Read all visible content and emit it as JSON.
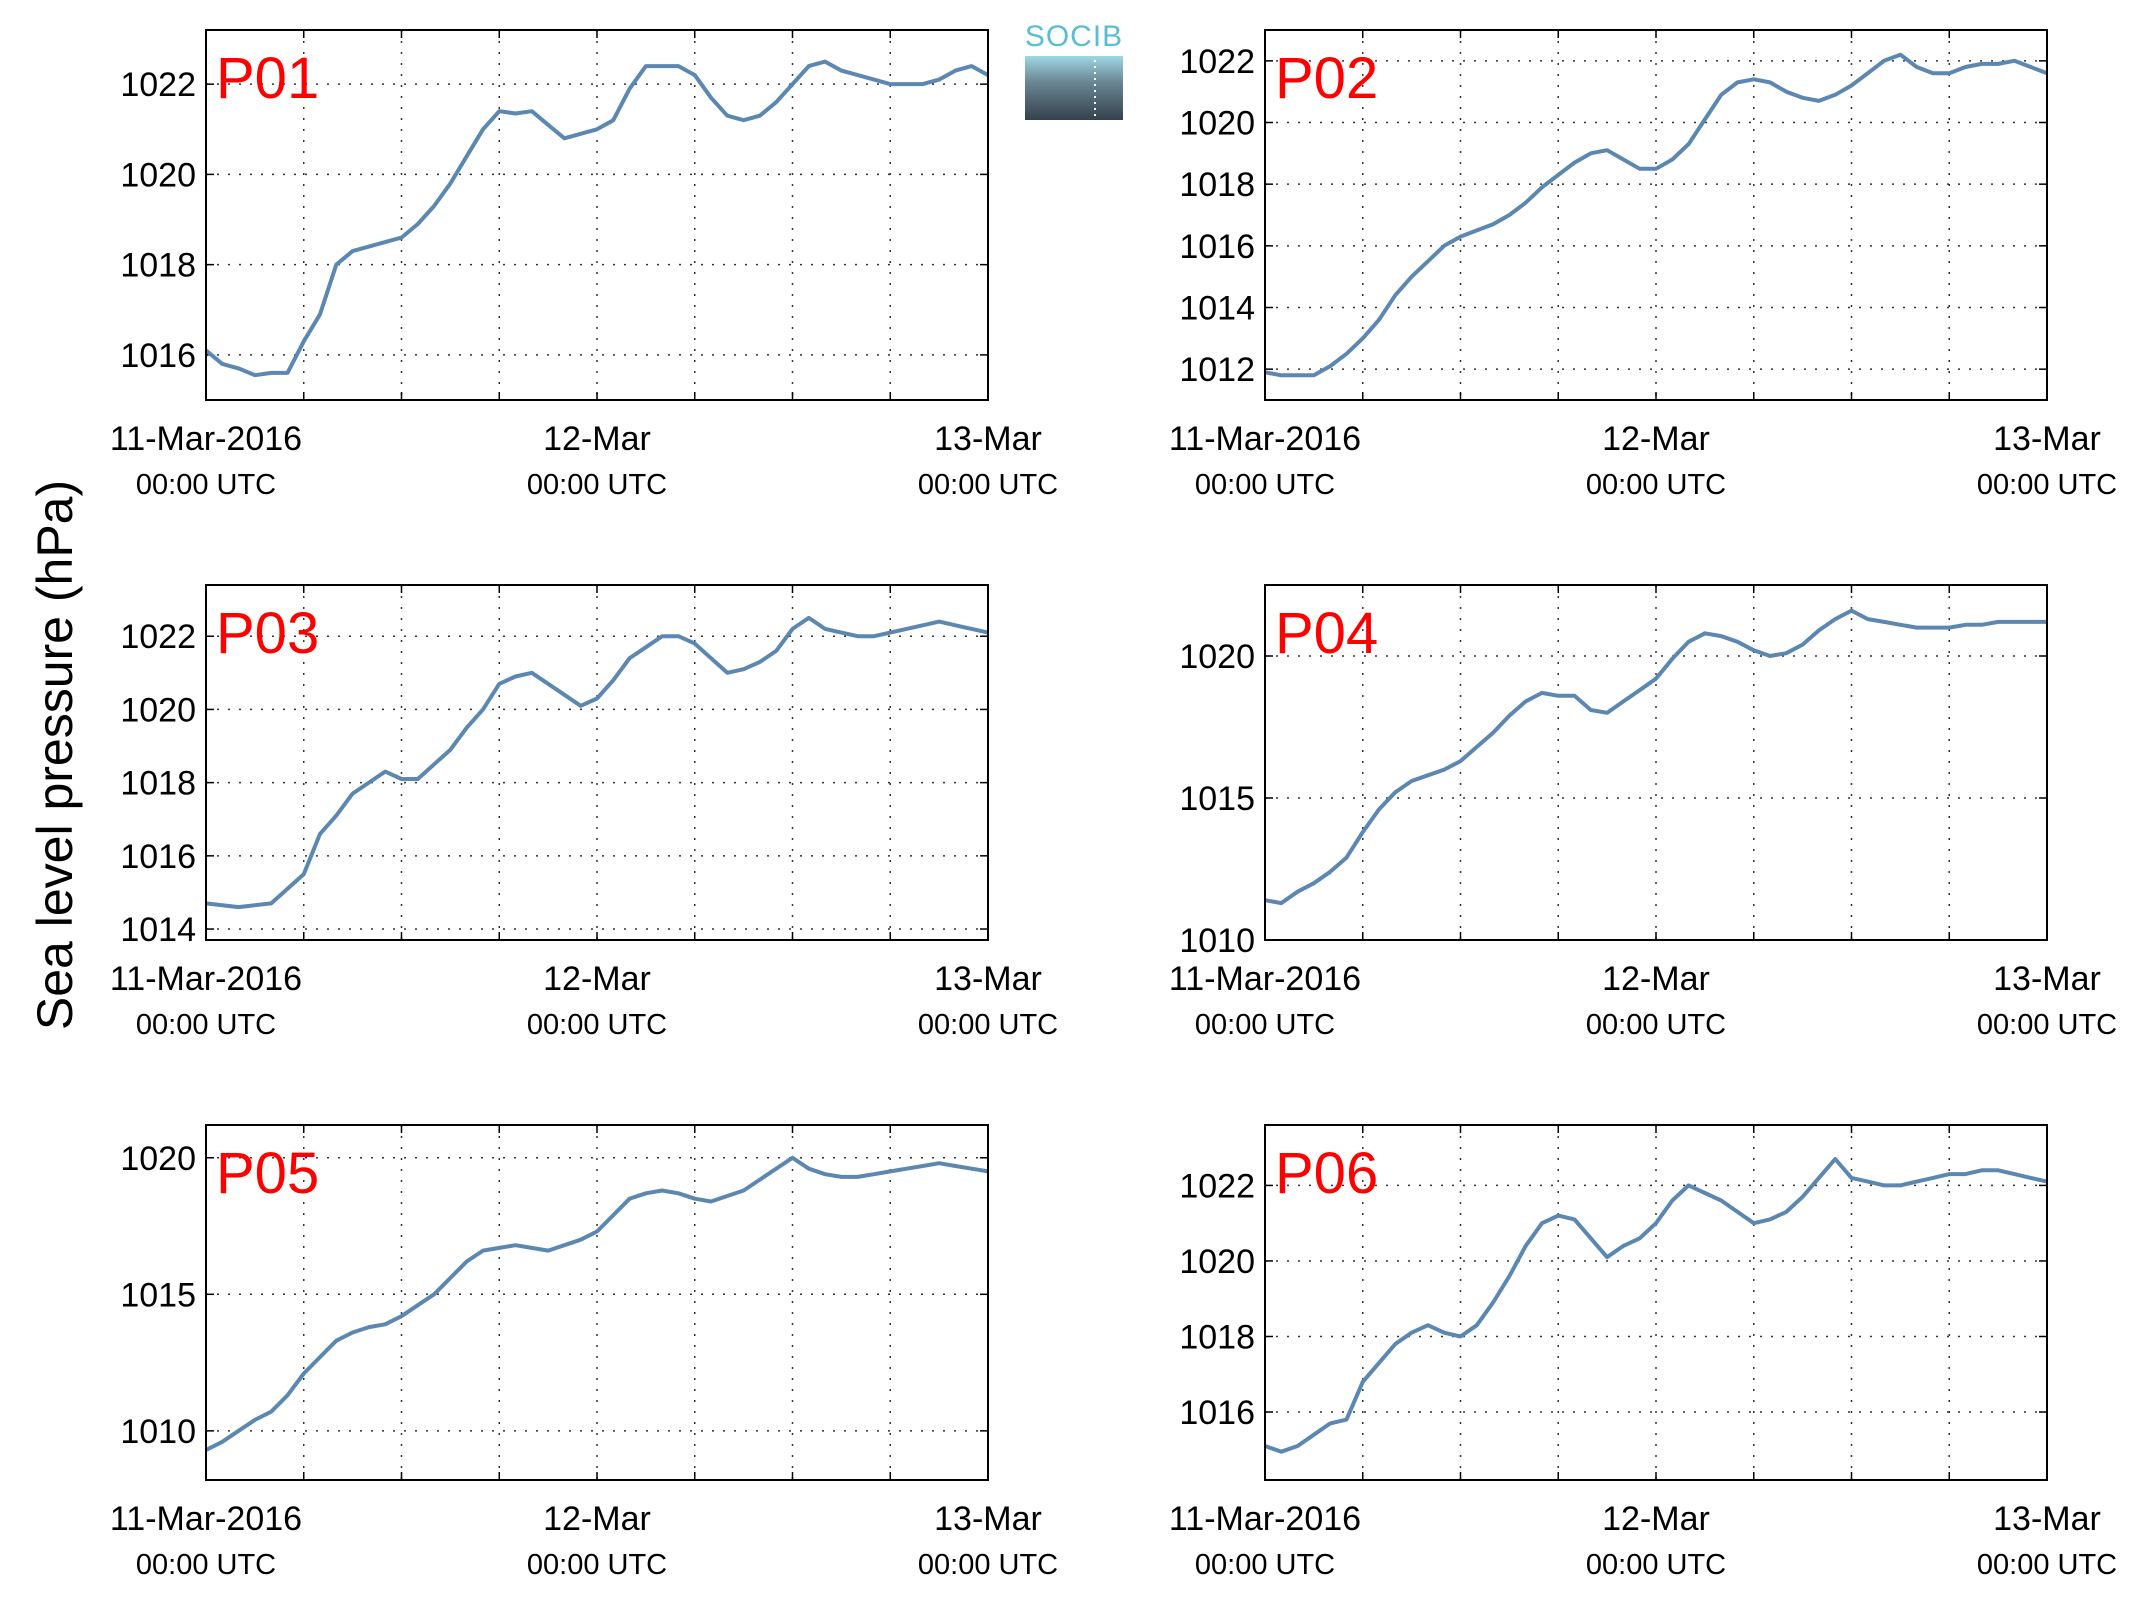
{
  "figure": {
    "ylabel": "Sea level pressure (hPa)",
    "logo_text": "SOCIB",
    "line_color": "#5b87b1",
    "label_color": "#ff0000"
  },
  "chart_data": [
    {
      "type": "line",
      "name": "P01",
      "grid": true,
      "xlabels": [
        {
          "main": "11-Mar-2016",
          "sub": "00:00 UTC"
        },
        {
          "main": "12-Mar",
          "sub": "00:00 UTC"
        },
        {
          "main": "13-Mar",
          "sub": "00:00 UTC"
        }
      ],
      "xlim": [
        0,
        48
      ],
      "ylim": [
        1015,
        1023.2
      ],
      "yticks": [
        1016,
        1018,
        1020,
        1022
      ],
      "x": [
        0,
        1,
        2,
        3,
        4,
        5,
        6,
        7,
        8,
        9,
        10,
        11,
        12,
        13,
        14,
        15,
        16,
        17,
        18,
        19,
        20,
        21,
        22,
        23,
        24,
        25,
        26,
        27,
        28,
        29,
        30,
        31,
        32,
        33,
        34,
        35,
        36,
        37,
        38,
        39,
        40,
        41,
        42,
        43,
        44,
        45,
        46,
        47,
        48
      ],
      "values": [
        1016.1,
        1015.8,
        1015.7,
        1015.55,
        1015.6,
        1015.6,
        1016.3,
        1016.9,
        1018.0,
        1018.3,
        1018.4,
        1018.5,
        1018.6,
        1018.9,
        1019.3,
        1019.8,
        1020.4,
        1021.0,
        1021.4,
        1021.35,
        1021.4,
        1021.1,
        1020.8,
        1020.9,
        1021.0,
        1021.2,
        1021.9,
        1022.4,
        1022.4,
        1022.4,
        1022.2,
        1021.7,
        1021.3,
        1021.2,
        1021.3,
        1021.6,
        1022.0,
        1022.4,
        1022.5,
        1022.3,
        1022.2,
        1022.1,
        1022.0,
        1022.0,
        1022.0,
        1022.1,
        1022.3,
        1022.4,
        1022.2
      ]
    },
    {
      "type": "line",
      "name": "P02",
      "grid": true,
      "xlabels": [
        {
          "main": "11-Mar-2016",
          "sub": "00:00 UTC"
        },
        {
          "main": "12-Mar",
          "sub": "00:00 UTC"
        },
        {
          "main": "13-Mar",
          "sub": "00:00 UTC"
        }
      ],
      "xlim": [
        0,
        48
      ],
      "ylim": [
        1011,
        1023
      ],
      "yticks": [
        1012,
        1014,
        1016,
        1018,
        1020,
        1022
      ],
      "x": [
        0,
        1,
        2,
        3,
        4,
        5,
        6,
        7,
        8,
        9,
        10,
        11,
        12,
        13,
        14,
        15,
        16,
        17,
        18,
        19,
        20,
        21,
        22,
        23,
        24,
        25,
        26,
        27,
        28,
        29,
        30,
        31,
        32,
        33,
        34,
        35,
        36,
        37,
        38,
        39,
        40,
        41,
        42,
        43,
        44,
        45,
        46,
        47,
        48
      ],
      "values": [
        1011.9,
        1011.8,
        1011.8,
        1011.8,
        1012.1,
        1012.5,
        1013.0,
        1013.6,
        1014.4,
        1015.0,
        1015.5,
        1016.0,
        1016.3,
        1016.5,
        1016.7,
        1017.0,
        1017.4,
        1017.9,
        1018.3,
        1018.7,
        1019.0,
        1019.1,
        1018.8,
        1018.5,
        1018.5,
        1018.8,
        1019.3,
        1020.1,
        1020.9,
        1021.3,
        1021.4,
        1021.3,
        1021.0,
        1020.8,
        1020.7,
        1020.9,
        1021.2,
        1021.6,
        1022.0,
        1022.2,
        1021.8,
        1021.6,
        1021.6,
        1021.8,
        1021.9,
        1021.9,
        1022.0,
        1021.8,
        1021.6
      ]
    },
    {
      "type": "line",
      "name": "P03",
      "grid": true,
      "xlabels": [
        {
          "main": "11-Mar-2016",
          "sub": "00:00 UTC"
        },
        {
          "main": "12-Mar",
          "sub": "00:00 UTC"
        },
        {
          "main": "13-Mar",
          "sub": "00:00 UTC"
        }
      ],
      "xlim": [
        0,
        48
      ],
      "ylim": [
        1013.7,
        1023.4
      ],
      "yticks": [
        1014,
        1016,
        1018,
        1020,
        1022
      ],
      "x": [
        0,
        1,
        2,
        3,
        4,
        5,
        6,
        7,
        8,
        9,
        10,
        11,
        12,
        13,
        14,
        15,
        16,
        17,
        18,
        19,
        20,
        21,
        22,
        23,
        24,
        25,
        26,
        27,
        28,
        29,
        30,
        31,
        32,
        33,
        34,
        35,
        36,
        37,
        38,
        39,
        40,
        41,
        42,
        43,
        44,
        45,
        46,
        47,
        48
      ],
      "values": [
        1014.7,
        1014.65,
        1014.6,
        1014.65,
        1014.7,
        1015.1,
        1015.5,
        1016.6,
        1017.1,
        1017.7,
        1018.0,
        1018.3,
        1018.1,
        1018.1,
        1018.5,
        1018.9,
        1019.5,
        1020.0,
        1020.7,
        1020.9,
        1021.0,
        1020.7,
        1020.4,
        1020.1,
        1020.3,
        1020.8,
        1021.4,
        1021.7,
        1022.0,
        1022.0,
        1021.8,
        1021.4,
        1021.0,
        1021.1,
        1021.3,
        1021.6,
        1022.2,
        1022.5,
        1022.2,
        1022.1,
        1022.0,
        1022.0,
        1022.1,
        1022.2,
        1022.3,
        1022.4,
        1022.3,
        1022.2,
        1022.1
      ]
    },
    {
      "type": "line",
      "name": "P04",
      "grid": true,
      "xlabels": [
        {
          "main": "11-Mar-2016",
          "sub": "00:00 UTC"
        },
        {
          "main": "12-Mar",
          "sub": "00:00 UTC"
        },
        {
          "main": "13-Mar",
          "sub": "00:00 UTC"
        }
      ],
      "xlim": [
        0,
        48
      ],
      "ylim": [
        1010,
        1022.5
      ],
      "yticks": [
        1010,
        1015,
        1020
      ],
      "x": [
        0,
        1,
        2,
        3,
        4,
        5,
        6,
        7,
        8,
        9,
        10,
        11,
        12,
        13,
        14,
        15,
        16,
        17,
        18,
        19,
        20,
        21,
        22,
        23,
        24,
        25,
        26,
        27,
        28,
        29,
        30,
        31,
        32,
        33,
        34,
        35,
        36,
        37,
        38,
        39,
        40,
        41,
        42,
        43,
        44,
        45,
        46,
        47,
        48
      ],
      "values": [
        1011.4,
        1011.3,
        1011.7,
        1012.0,
        1012.4,
        1012.9,
        1013.8,
        1014.6,
        1015.2,
        1015.6,
        1015.8,
        1016.0,
        1016.3,
        1016.8,
        1017.3,
        1017.9,
        1018.4,
        1018.7,
        1018.6,
        1018.6,
        1018.1,
        1018.0,
        1018.4,
        1018.8,
        1019.2,
        1019.9,
        1020.5,
        1020.8,
        1020.7,
        1020.5,
        1020.2,
        1020.0,
        1020.1,
        1020.4,
        1020.9,
        1021.3,
        1021.6,
        1021.3,
        1021.2,
        1021.1,
        1021.0,
        1021.0,
        1021.0,
        1021.1,
        1021.1,
        1021.2,
        1021.2,
        1021.2,
        1021.2
      ]
    },
    {
      "type": "line",
      "name": "P05",
      "grid": true,
      "xlabels": [
        {
          "main": "11-Mar-2016",
          "sub": "00:00 UTC"
        },
        {
          "main": "12-Mar",
          "sub": "00:00 UTC"
        },
        {
          "main": "13-Mar",
          "sub": "00:00 UTC"
        }
      ],
      "xlim": [
        0,
        48
      ],
      "ylim": [
        1008.2,
        1021.2
      ],
      "yticks": [
        1010,
        1015,
        1020
      ],
      "x": [
        0,
        1,
        2,
        3,
        4,
        5,
        6,
        7,
        8,
        9,
        10,
        11,
        12,
        13,
        14,
        15,
        16,
        17,
        18,
        19,
        20,
        21,
        22,
        23,
        24,
        25,
        26,
        27,
        28,
        29,
        30,
        31,
        32,
        33,
        34,
        35,
        36,
        37,
        38,
        39,
        40,
        41,
        42,
        43,
        44,
        45,
        46,
        47,
        48
      ],
      "values": [
        1009.3,
        1009.6,
        1010.0,
        1010.4,
        1010.7,
        1011.3,
        1012.1,
        1012.7,
        1013.3,
        1013.6,
        1013.8,
        1013.9,
        1014.2,
        1014.6,
        1015.0,
        1015.6,
        1016.2,
        1016.6,
        1016.7,
        1016.8,
        1016.7,
        1016.6,
        1016.8,
        1017.0,
        1017.3,
        1017.9,
        1018.5,
        1018.7,
        1018.8,
        1018.7,
        1018.5,
        1018.4,
        1018.6,
        1018.8,
        1019.2,
        1019.6,
        1020.0,
        1019.6,
        1019.4,
        1019.3,
        1019.3,
        1019.4,
        1019.5,
        1019.6,
        1019.7,
        1019.8,
        1019.7,
        1019.6,
        1019.5
      ]
    },
    {
      "type": "line",
      "name": "P06",
      "grid": true,
      "xlabels": [
        {
          "main": "11-Mar-2016",
          "sub": "00:00 UTC"
        },
        {
          "main": "12-Mar",
          "sub": "00:00 UTC"
        },
        {
          "main": "13-Mar",
          "sub": "00:00 UTC"
        }
      ],
      "xlim": [
        0,
        48
      ],
      "ylim": [
        1014.2,
        1023.6
      ],
      "yticks": [
        1016,
        1018,
        1020,
        1022
      ],
      "x": [
        0,
        1,
        2,
        3,
        4,
        5,
        6,
        7,
        8,
        9,
        10,
        11,
        12,
        13,
        14,
        15,
        16,
        17,
        18,
        19,
        20,
        21,
        22,
        23,
        24,
        25,
        26,
        27,
        28,
        29,
        30,
        31,
        32,
        33,
        34,
        35,
        36,
        37,
        38,
        39,
        40,
        41,
        42,
        43,
        44,
        45,
        46,
        47,
        48
      ],
      "values": [
        1015.1,
        1014.95,
        1015.1,
        1015.4,
        1015.7,
        1015.8,
        1016.8,
        1017.3,
        1017.8,
        1018.1,
        1018.3,
        1018.1,
        1018.0,
        1018.3,
        1018.9,
        1019.6,
        1020.4,
        1021.0,
        1021.2,
        1021.1,
        1020.6,
        1020.1,
        1020.4,
        1020.6,
        1021.0,
        1021.6,
        1022.0,
        1021.8,
        1021.6,
        1021.3,
        1021.0,
        1021.1,
        1021.3,
        1021.7,
        1022.2,
        1022.7,
        1022.2,
        1022.1,
        1022.0,
        1022.0,
        1022.1,
        1022.2,
        1022.3,
        1022.3,
        1022.4,
        1022.4,
        1022.3,
        1022.2,
        1022.1
      ]
    }
  ]
}
